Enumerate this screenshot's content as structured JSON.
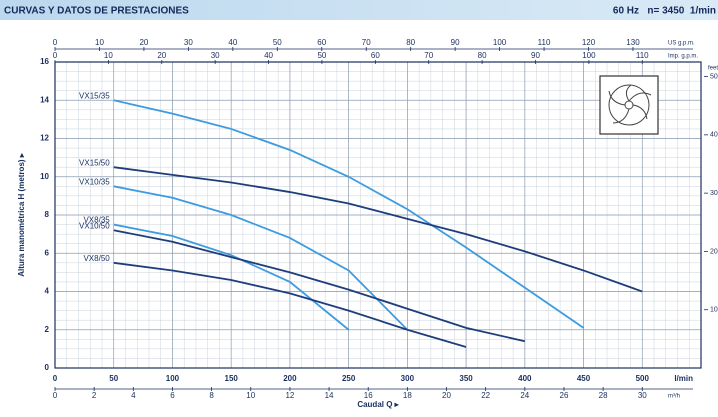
{
  "chart_data": {
    "type": "line",
    "title": "CURVAS Y DATOS DE PRESTACIONES",
    "subtitle": "60 Hz   n= 3450  1/min",
    "xlabel": "Caudal Q ▸",
    "ylabel": "Altura manométrica H (metros) ▸",
    "x_unit": "l/min",
    "xlim": [
      0,
      550
    ],
    "xticks": [
      0,
      50,
      100,
      150,
      200,
      250,
      300,
      350,
      400,
      450,
      500
    ],
    "ylim": [
      0,
      16
    ],
    "yticks": [
      0,
      2,
      4,
      6,
      8,
      10,
      12,
      14,
      16
    ],
    "grid": true,
    "secondary_x_axes": [
      {
        "label": "US g.p.m.",
        "xlim": [
          0,
          145.3
        ],
        "ticks": [
          0,
          10,
          20,
          30,
          40,
          50,
          60,
          70,
          80,
          90,
          100,
          110,
          120,
          130
        ],
        "position": "top"
      },
      {
        "label": "Imp. g.p.m.",
        "xlim": [
          0,
          121
        ],
        "ticks": [
          0,
          10,
          20,
          30,
          40,
          50,
          60,
          70,
          80,
          90,
          100,
          110
        ],
        "position": "top"
      },
      {
        "label": "m³/h",
        "xlim": [
          0,
          33
        ],
        "ticks": [
          0,
          2,
          4,
          6,
          8,
          10,
          12,
          14,
          16,
          18,
          20,
          22,
          24,
          26,
          28,
          30
        ],
        "position": "bottom"
      }
    ],
    "y2label": "feet",
    "y2lim": [
      0,
      52.5
    ],
    "y2ticks": [
      10,
      20,
      30,
      40,
      50
    ],
    "series": [
      {
        "name": "VX15/35",
        "color": "#3d9be0",
        "x": [
          50,
          100,
          150,
          200,
          250,
          300,
          350,
          400,
          450
        ],
        "values": [
          14,
          13.3,
          12.5,
          11.4,
          10,
          8.3,
          6.3,
          4.2,
          2.1
        ]
      },
      {
        "name": "VX15/50",
        "color": "#1e3d7b",
        "x": [
          50,
          100,
          150,
          200,
          250,
          300,
          350,
          400,
          450,
          500
        ],
        "values": [
          10.5,
          10.1,
          9.7,
          9.2,
          8.6,
          7.8,
          7,
          6.1,
          5.1,
          4
        ]
      },
      {
        "name": "VX10/35",
        "color": "#3d9be0",
        "x": [
          50,
          100,
          150,
          200,
          250,
          300
        ],
        "values": [
          9.5,
          8.9,
          8,
          6.8,
          5.1,
          2
        ]
      },
      {
        "name": "VX8/35",
        "color": "#3d9be0",
        "x": [
          50,
          100,
          150,
          200,
          250
        ],
        "values": [
          7.5,
          6.9,
          5.9,
          4.5,
          2
        ]
      },
      {
        "name": "VX10/50",
        "color": "#1e3d7b",
        "x": [
          50,
          100,
          150,
          200,
          250,
          300,
          350,
          400
        ],
        "values": [
          7.2,
          6.6,
          5.8,
          5,
          4.1,
          3.1,
          2.1,
          1.4
        ]
      },
      {
        "name": "VX8/50",
        "color": "#1e3d7b",
        "x": [
          50,
          100,
          150,
          200,
          250,
          300,
          350
        ],
        "values": [
          5.5,
          5.1,
          4.6,
          3.9,
          3,
          2,
          1.1
        ]
      }
    ]
  }
}
